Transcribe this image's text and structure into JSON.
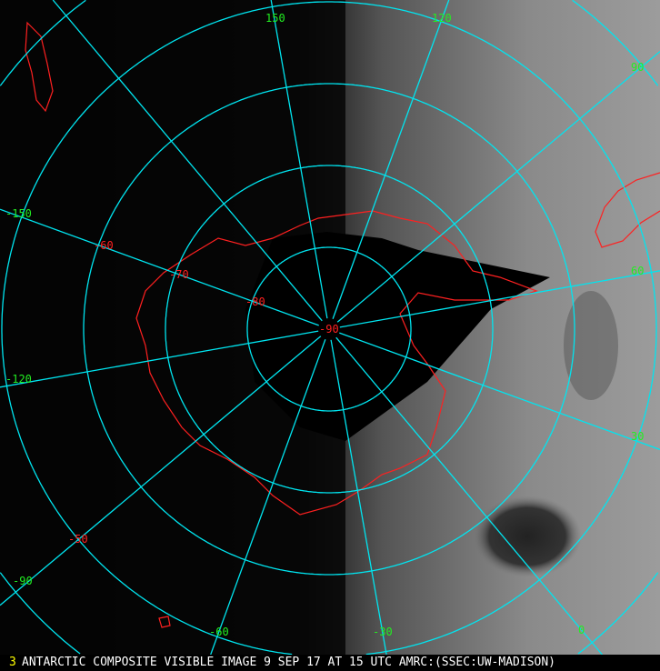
{
  "map": {
    "projection": "polar stereographic, south pole centered",
    "grid_color": "#00e5f0",
    "coast_color": "#ff2020",
    "lon_label_color": "#22ee22",
    "lat_label_color": "#ff2020",
    "longitude_labels": [
      "150",
      "120",
      "90",
      "60",
      "30",
      "0",
      "-30",
      "-60",
      "-90",
      "-120",
      "-150"
    ],
    "latitude_labels": [
      "-90",
      "-80",
      "-70",
      "-60",
      "-50"
    ]
  },
  "caption": {
    "mark": "3",
    "text": "ANTARCTIC COMPOSITE VISIBLE IMAGE 9 SEP 17 AT 15 UTC AMRC:(SSEC:UW-MADISON)"
  }
}
